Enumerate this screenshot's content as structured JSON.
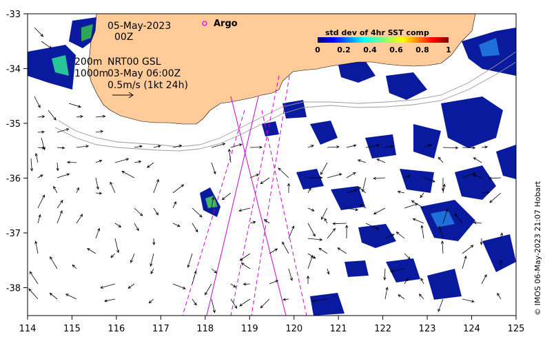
{
  "date_line1": "05-May-2023",
  "date_line2": "00Z",
  "legend_argo": "Argo",
  "colorbar": {
    "title": "std dev of 4hr SST comp",
    "ticks": [
      "0",
      "0.2",
      "0.4",
      "0.6",
      "0.8",
      "1"
    ],
    "colors": [
      "#00007f",
      "#0000ff",
      "#007fff",
      "#00ffff",
      "#7fff7f",
      "#ffff00",
      "#ff7f00",
      "#ff0000",
      "#7f0000"
    ]
  },
  "isobath_labels": [
    "200m",
    "1000m"
  ],
  "source_text": "NRT00 GSL",
  "source_time": "03-May 06:00Z",
  "scale_text": "0.5m/s (1kt 24h)",
  "x_ticks": [
    "114",
    "115",
    "116",
    "117",
    "118",
    "119",
    "120",
    "121",
    "122",
    "123",
    "124",
    "125"
  ],
  "y_ticks": [
    "-33",
    "-34",
    "-35",
    "-36",
    "-37",
    "-38"
  ],
  "credit": "© IMOS 06-May-2023 21:07 Hobart",
  "colors": {
    "land": "#ffcc99",
    "argo": "#ff00ff",
    "track": "#cc00cc",
    "isobath": "#999999"
  }
}
